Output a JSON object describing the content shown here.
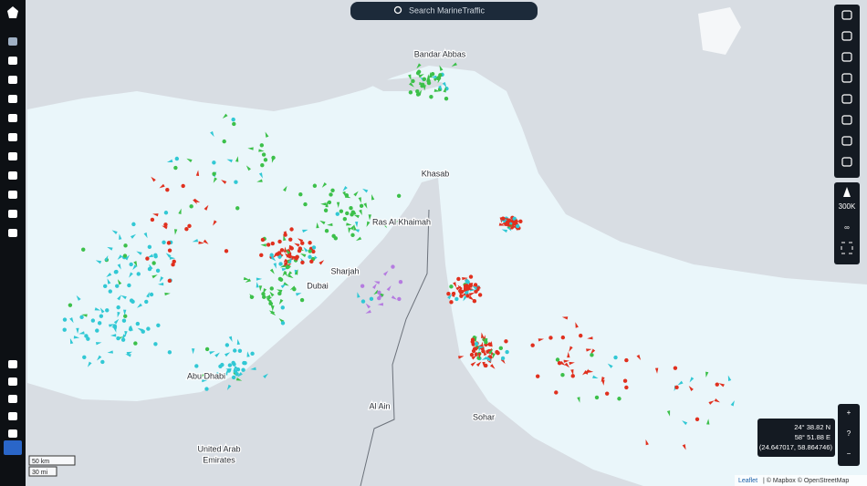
{
  "search": {
    "placeholder": "Search MarineTraffic"
  },
  "places": [
    "Bandar Abbas",
    "Khasab",
    "Ras Al Khaimah",
    "Sharjah",
    "Dubai",
    "Abu Dhabi",
    "Al Ain",
    "United Arab",
    "Emirates",
    "Sohar"
  ],
  "toolbar": {
    "range": "300K"
  },
  "zoom": {
    "in": "+",
    "help": "?",
    "out": "−"
  },
  "cursor": {
    "lat": "24° 38.82 N",
    "lon": "58° 51.88 E",
    "decimal": "(24.647017, 58.864746)"
  },
  "scale": {
    "metric": "50 km",
    "imperial": "30 mi"
  },
  "attribution": {
    "leaflet": "Leaflet",
    "providers": "| © Mapbox © OpenStreetMap"
  }
}
